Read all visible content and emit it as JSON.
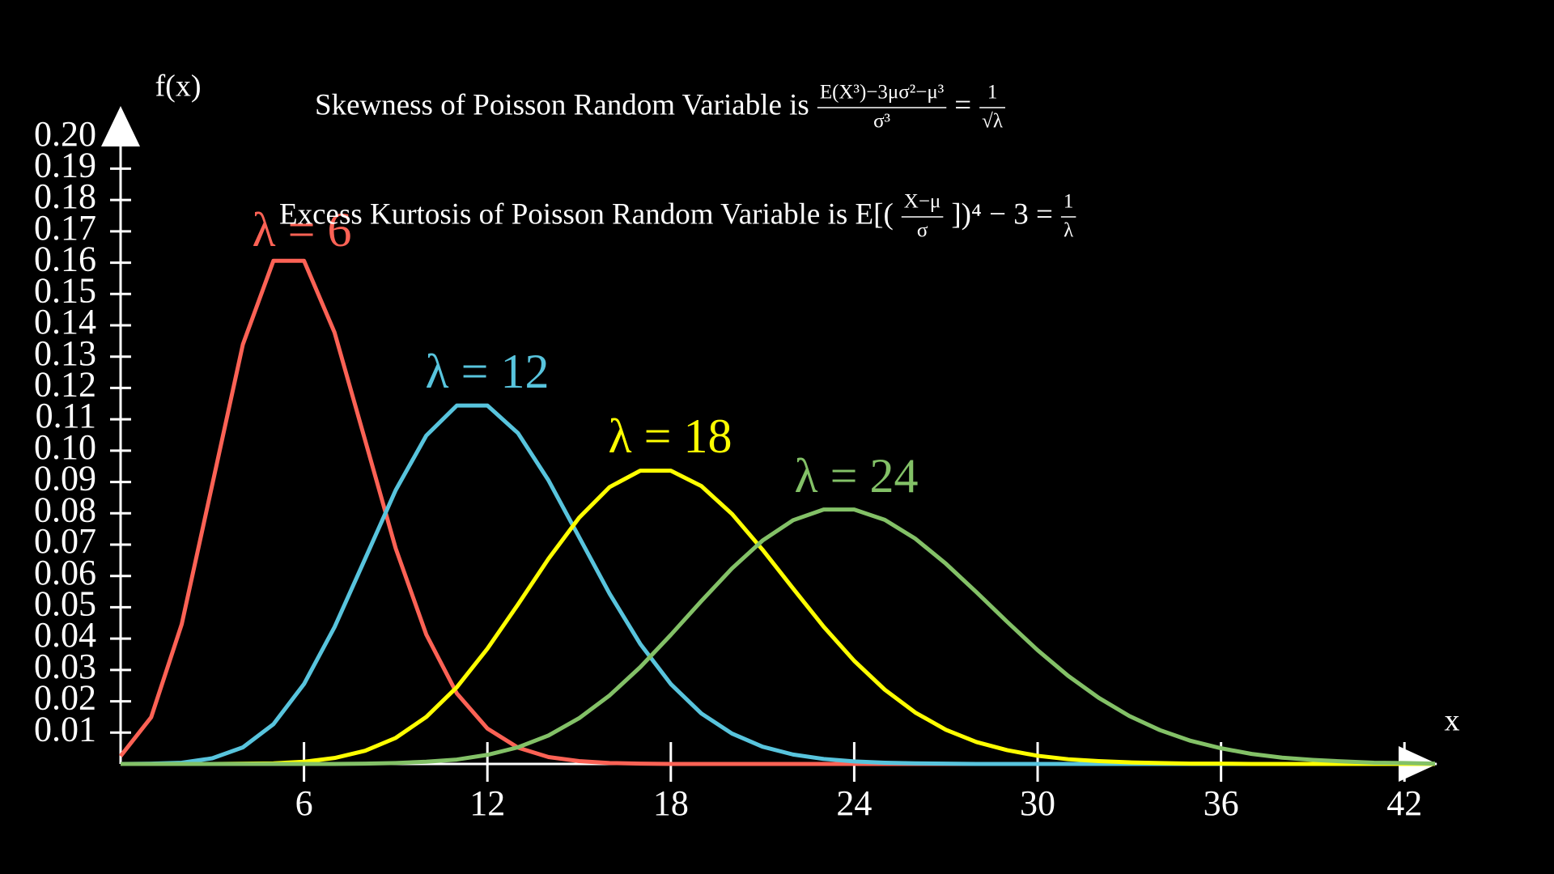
{
  "chart_data": {
    "type": "line",
    "annotations": [
      {
        "prefix": "Skewness of Poisson Random Variable is",
        "numerator": "E(X³)−3μσ²−μ³",
        "denominator": "σ³",
        "suffix": "=",
        "rhs_numerator": "1",
        "rhs_denominator": "√λ"
      },
      {
        "prefix": "Excess Kurtosis of Poisson Random Variable is E[(",
        "numerator": "X−μ",
        "denominator": "σ",
        "suffix": "])⁴ − 3 =",
        "rhs_numerator": "1",
        "rhs_denominator": "λ"
      }
    ],
    "x_label": "x",
    "y_label": "f(x)",
    "x": [
      0,
      1,
      2,
      3,
      4,
      5,
      6,
      7,
      8,
      9,
      10,
      11,
      12,
      13,
      14,
      15,
      16,
      17,
      18,
      19,
      20,
      21,
      22,
      23,
      24,
      25,
      26,
      27,
      28,
      29,
      30,
      31,
      32,
      33,
      34,
      35,
      36,
      37,
      38,
      39,
      40,
      41,
      42,
      43
    ],
    "series": [
      {
        "name": "λ = 6",
        "color": "#fc6255",
        "values": [
          0.0025,
          0.0149,
          0.0446,
          0.0892,
          0.1339,
          0.1606,
          0.1606,
          0.1377,
          0.1033,
          0.0688,
          0.0413,
          0.0225,
          0.0113,
          0.0052,
          0.0022,
          0.0009,
          0.0003,
          0.0001,
          0,
          0,
          0,
          0,
          0,
          0,
          0,
          0,
          0,
          0,
          0,
          0,
          0,
          0,
          0,
          0,
          0,
          0,
          0,
          0,
          0,
          0,
          0,
          0,
          0,
          0
        ]
      },
      {
        "name": "λ = 12",
        "color": "#58c4dd",
        "values": [
          0,
          0.0001,
          0.0004,
          0.0018,
          0.0053,
          0.0127,
          0.0255,
          0.0437,
          0.0655,
          0.0874,
          0.1048,
          0.1144,
          0.1144,
          0.1056,
          0.0905,
          0.0724,
          0.0543,
          0.0383,
          0.0255,
          0.0161,
          0.0097,
          0.0055,
          0.003,
          0.0016,
          0.0008,
          0.0004,
          0.0002,
          0.0001,
          0,
          0,
          0,
          0,
          0,
          0,
          0,
          0,
          0,
          0,
          0,
          0,
          0,
          0,
          0,
          0
        ]
      },
      {
        "name": "λ = 18",
        "color": "#ffff00",
        "values": [
          0,
          0,
          0,
          0,
          0.0001,
          0.0002,
          0.0007,
          0.0019,
          0.0042,
          0.0083,
          0.015,
          0.0245,
          0.0368,
          0.0509,
          0.0655,
          0.0786,
          0.0884,
          0.0936,
          0.0936,
          0.0887,
          0.0798,
          0.0684,
          0.056,
          0.0438,
          0.0329,
          0.0237,
          0.0164,
          0.0109,
          0.007,
          0.0044,
          0.0026,
          0.0015,
          0.0009,
          0.0005,
          0.0003,
          0.0001,
          0.0001,
          0,
          0,
          0,
          0,
          0,
          0,
          0
        ]
      },
      {
        "name": "λ = 24",
        "color": "#83c167",
        "values": [
          0,
          0,
          0,
          0,
          0,
          0,
          0,
          0,
          0.0001,
          0.0003,
          0.0007,
          0.0014,
          0.0029,
          0.0053,
          0.0091,
          0.0146,
          0.0219,
          0.0309,
          0.0412,
          0.052,
          0.0624,
          0.0713,
          0.0778,
          0.0812,
          0.0812,
          0.0779,
          0.0719,
          0.0639,
          0.0548,
          0.0454,
          0.0363,
          0.0281,
          0.0211,
          0.0153,
          0.0108,
          0.0074,
          0.005,
          0.0032,
          0.002,
          0.0013,
          0.0008,
          0.0004,
          0.0003,
          0.0001
        ]
      }
    ],
    "xlim": [
      0,
      43
    ],
    "xticks": [
      6,
      12,
      18,
      24,
      30,
      36,
      42
    ],
    "ylim": [
      0,
      0.21
    ],
    "yticks": [
      0.01,
      0.02,
      0.03,
      0.04,
      0.05,
      0.06,
      0.07,
      0.08,
      0.09,
      {
        "value": 0.1,
        "label": "0.10"
      },
      0.11,
      0.12,
      0.13,
      0.14,
      0.15,
      0.16,
      0.17,
      0.18,
      0.19,
      {
        "value": 0.2,
        "label": "0.20"
      }
    ]
  }
}
